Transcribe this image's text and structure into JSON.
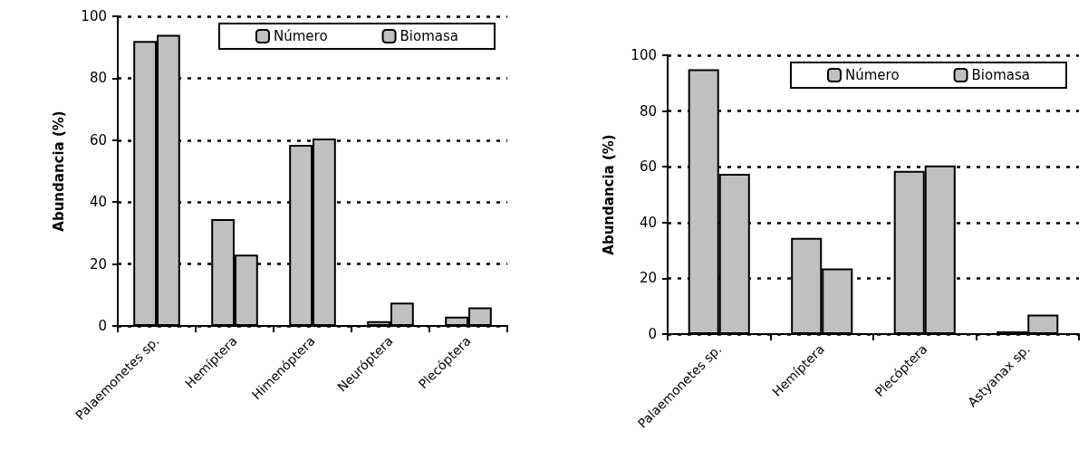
{
  "chart_data": [
    {
      "type": "bar",
      "ylabel": "Abundancia (%)",
      "categories": [
        "Palaemonetes sp.",
        "Hemíptera",
        "Himenóptera",
        "Neuróptera",
        "Plecóptera"
      ],
      "series": [
        {
          "name": "Número",
          "color": "#c0c0c0",
          "values": [
            92,
            34.5,
            58.5,
            1.5,
            3
          ]
        },
        {
          "name": "Biomasa",
          "color": "#c0c0c0",
          "values": [
            94,
            23,
            60.5,
            7.5,
            6
          ]
        }
      ],
      "ylim": [
        0,
        100
      ],
      "yticks": [
        0,
        20,
        40,
        60,
        80,
        100
      ],
      "grid": "y",
      "legend": "top right"
    },
    {
      "type": "bar",
      "ylabel": "Abundancia (%)",
      "categories": [
        "Palaemonetes sp.",
        "Hemíptera",
        "Plecóptera",
        "Astyanax sp."
      ],
      "series": [
        {
          "name": "Número",
          "color": "#c0c0c0",
          "values": [
            95,
            34.5,
            58.5,
            1
          ]
        },
        {
          "name": "Biomasa",
          "color": "#c0c0c0",
          "values": [
            57.5,
            23.5,
            60.5,
            7
          ]
        }
      ],
      "ylim": [
        0,
        100
      ],
      "yticks": [
        0,
        20,
        40,
        60,
        80,
        100
      ],
      "grid": "y",
      "legend": "top right"
    }
  ]
}
